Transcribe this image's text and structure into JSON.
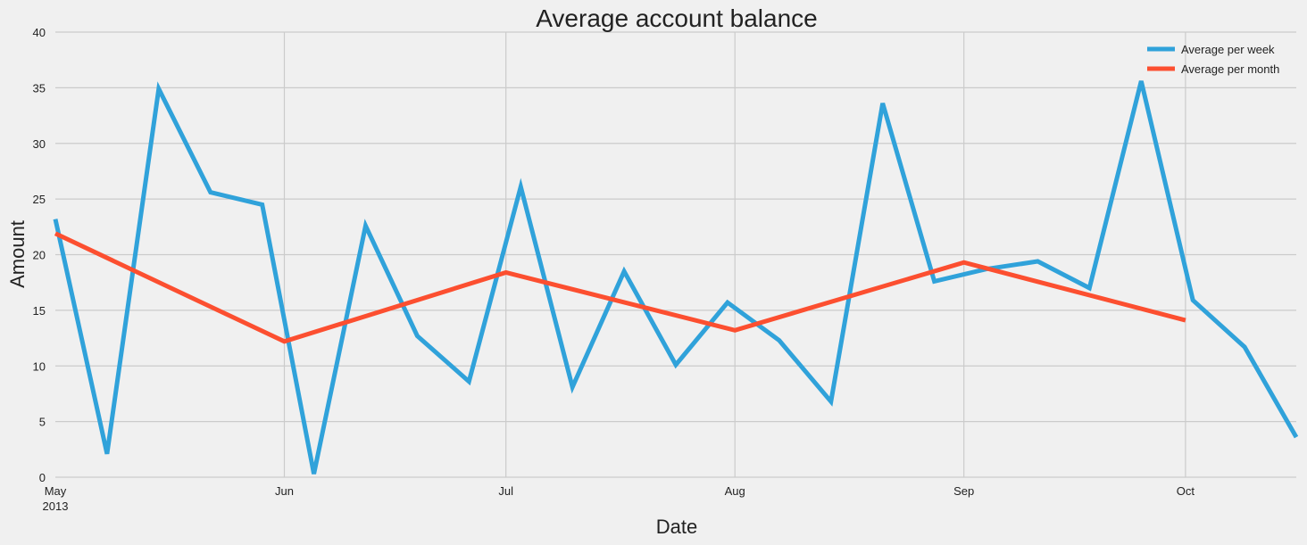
{
  "chart_data": {
    "type": "line",
    "title": "Average account balance",
    "xlabel": "Date",
    "ylabel": "Amount",
    "ylim": [
      0,
      40
    ],
    "yticks": [
      0,
      5,
      10,
      15,
      20,
      25,
      30,
      35,
      40
    ],
    "xlim_days": [
      0,
      168
    ],
    "xticks": [
      {
        "label": "May",
        "sublabel": "2013",
        "day": 0
      },
      {
        "label": "Jun",
        "day": 31
      },
      {
        "label": "Jul",
        "day": 61
      },
      {
        "label": "Aug",
        "day": 92
      },
      {
        "label": "Sep",
        "day": 123
      },
      {
        "label": "Oct",
        "day": 153
      }
    ],
    "grid": true,
    "legend_position": "top-right",
    "colors": {
      "weekly": "#30a2da",
      "monthly": "#fc4f30",
      "grid": "#cbcbcb",
      "background": "#f0f0f0"
    },
    "series": [
      {
        "name": "Average per week",
        "color": "#30a2da",
        "x_days": [
          0,
          7,
          14,
          21,
          28,
          35,
          42,
          49,
          56,
          63,
          70,
          77,
          84,
          91,
          98,
          105,
          112,
          119,
          126,
          133,
          140,
          147,
          154,
          161,
          168
        ],
        "values": [
          23.2,
          2.1,
          34.9,
          25.6,
          24.5,
          0.3,
          22.6,
          12.7,
          8.6,
          26.1,
          8.1,
          18.5,
          10.1,
          15.7,
          12.3,
          6.8,
          33.6,
          17.6,
          18.7,
          19.4,
          17.0,
          35.6,
          15.9,
          11.7,
          3.6
        ]
      },
      {
        "name": "Average per month",
        "color": "#fc4f30",
        "x_days": [
          0,
          31,
          61,
          92,
          123,
          153
        ],
        "values": [
          21.9,
          12.2,
          18.4,
          13.2,
          19.3,
          14.1
        ]
      }
    ]
  }
}
